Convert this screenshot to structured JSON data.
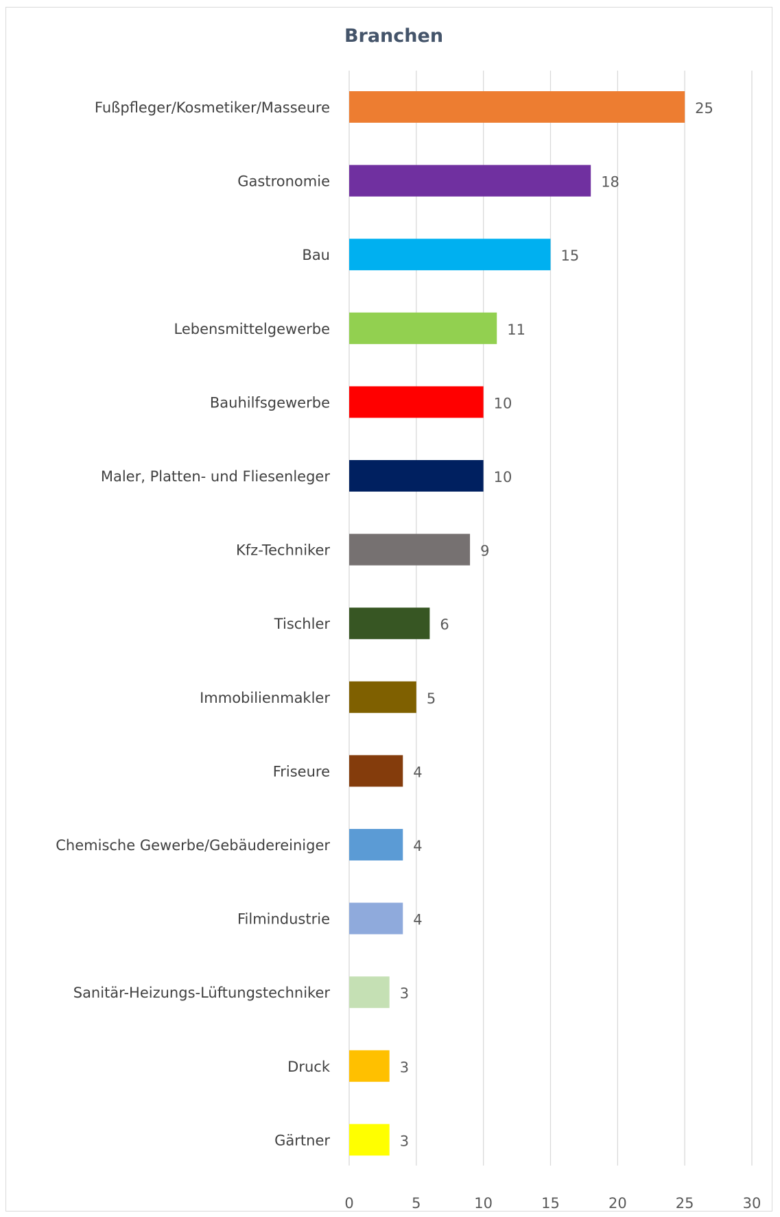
{
  "chart_data": {
    "type": "bar",
    "orientation": "horizontal",
    "title": "Branchen",
    "categories": [
      "Fußpfleger/Kosmetiker/Masseure",
      "Gastronomie",
      "Bau",
      "Lebensmittelgewerbe",
      "Bauhilfsgewerbe",
      "Maler, Platten- und Fliesenleger",
      "Kfz-Techniker",
      "Tischler",
      "Immobilienmakler",
      "Friseure",
      "Chemische Gewerbe/Gebäudereiniger",
      "Filmindustrie",
      "Sanitär-Heizungs-Lüftungstechniker",
      "Druck",
      "Gärtner"
    ],
    "values": [
      25,
      18,
      15,
      11,
      10,
      10,
      9,
      6,
      5,
      4,
      4,
      4,
      3,
      3,
      3
    ],
    "colors": [
      "#ed7d31",
      "#7030a0",
      "#00b0f0",
      "#92d050",
      "#ff0000",
      "#002060",
      "#767171",
      "#375623",
      "#7f6000",
      "#843c0c",
      "#5b9bd5",
      "#8faadc",
      "#c5e0b4",
      "#ffc000",
      "#ffff00"
    ],
    "xlim": [
      0,
      30
    ],
    "xticks": [
      "0",
      "5",
      "10",
      "15",
      "20",
      "25",
      "30"
    ],
    "xtick_values": [
      0,
      5,
      10,
      15,
      20,
      25,
      30
    ],
    "grid": "vertical",
    "legend": "none"
  }
}
